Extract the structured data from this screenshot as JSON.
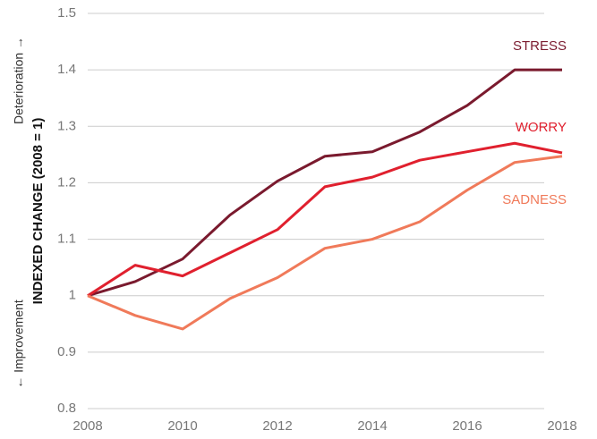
{
  "chart_data": {
    "type": "line",
    "ylabel": "INDEXED CHANGE (2008 = 1)",
    "annotations": [
      "Deterioration →",
      "← Improvement"
    ],
    "x": [
      2008,
      2009,
      2010,
      2011,
      2012,
      2013,
      2014,
      2015,
      2016,
      2017,
      2018
    ],
    "series": [
      {
        "name": "STRESS",
        "color": "#7a1a2e",
        "values": [
          1.0,
          1.025,
          1.065,
          1.143,
          1.203,
          1.247,
          1.255,
          1.29,
          1.337,
          1.4,
          1.4
        ]
      },
      {
        "name": "WORRY",
        "color": "#e0202e",
        "values": [
          1.0,
          1.054,
          1.035,
          1.076,
          1.117,
          1.193,
          1.21,
          1.24,
          1.255,
          1.27,
          1.253
        ]
      },
      {
        "name": "SADNESS",
        "color": "#f07a5a",
        "values": [
          1.0,
          0.965,
          0.941,
          0.995,
          1.032,
          1.084,
          1.1,
          1.131,
          1.187,
          1.236,
          1.247
        ]
      }
    ],
    "xlim": [
      2008,
      2018
    ],
    "xticks": [
      2008,
      2010,
      2012,
      2014,
      2016,
      2018
    ],
    "ylim": [
      0.8,
      1.5
    ],
    "yticks": [
      0.8,
      0.9,
      1,
      1.1,
      1.2,
      1.3,
      1.4,
      1.5
    ],
    "grid": true
  }
}
